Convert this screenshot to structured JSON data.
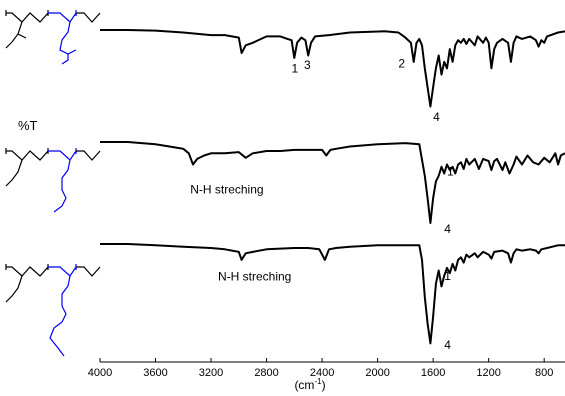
{
  "chart_data": {
    "type": "line",
    "title": "",
    "xlabel": "(cm-1)",
    "xlabel_base": "(cm",
    "xlabel_sup": "-1",
    "xlabel_close": ")",
    "ylabel": "%T",
    "xlim": [
      4000,
      650
    ],
    "x_reversed": true,
    "x_ticks": [
      4000,
      3600,
      3200,
      2800,
      2400,
      2000,
      1600,
      1200,
      800
    ],
    "grid": false,
    "legend": "none",
    "series": [
      {
        "points": [
          [
            4000,
            100
          ],
          [
            3800,
            100
          ],
          [
            3600,
            99.5
          ],
          [
            3400,
            98
          ],
          [
            3200,
            96
          ],
          [
            3100,
            96
          ],
          [
            3000,
            94
          ],
          [
            2980,
            82
          ],
          [
            2950,
            88
          ],
          [
            2900,
            90
          ],
          [
            2800,
            95
          ],
          [
            2700,
            95
          ],
          [
            2650,
            93
          ],
          [
            2620,
            92
          ],
          [
            2600,
            78
          ],
          [
            2580,
            90
          ],
          [
            2550,
            94
          ],
          [
            2520,
            92
          ],
          [
            2500,
            80
          ],
          [
            2480,
            90
          ],
          [
            2450,
            95
          ],
          [
            2350,
            96
          ],
          [
            2200,
            98
          ],
          [
            1950,
            99
          ],
          [
            1850,
            98
          ],
          [
            1800,
            94
          ],
          [
            1760,
            90
          ],
          [
            1740,
            75
          ],
          [
            1720,
            90
          ],
          [
            1700,
            93
          ],
          [
            1680,
            88
          ],
          [
            1660,
            70
          ],
          [
            1640,
            55
          ],
          [
            1620,
            40
          ],
          [
            1600,
            55
          ],
          [
            1580,
            70
          ],
          [
            1560,
            80
          ],
          [
            1540,
            65
          ],
          [
            1520,
            75
          ],
          [
            1500,
            70
          ],
          [
            1480,
            85
          ],
          [
            1460,
            75
          ],
          [
            1440,
            88
          ],
          [
            1420,
            92
          ],
          [
            1400,
            90
          ],
          [
            1380,
            93
          ],
          [
            1360,
            89
          ],
          [
            1340,
            93
          ],
          [
            1300,
            88
          ],
          [
            1280,
            95
          ],
          [
            1240,
            90
          ],
          [
            1220,
            94
          ],
          [
            1200,
            90
          ],
          [
            1180,
            70
          ],
          [
            1160,
            85
          ],
          [
            1140,
            90
          ],
          [
            1100,
            93
          ],
          [
            1060,
            90
          ],
          [
            1040,
            75
          ],
          [
            1020,
            90
          ],
          [
            1000,
            95
          ],
          [
            960,
            93
          ],
          [
            900,
            95
          ],
          [
            860,
            92
          ],
          [
            840,
            87
          ],
          [
            820,
            92
          ],
          [
            800,
            90
          ],
          [
            780,
            95
          ],
          [
            700,
            98
          ],
          [
            650,
            99
          ]
        ],
        "labels": [
          {
            "text": "1",
            "x": 2620,
            "y": 76
          },
          {
            "text": "3",
            "x": 2530,
            "y": 79
          },
          {
            "text": "2",
            "x": 1850,
            "y": 80
          },
          {
            "text": "4",
            "x": 1600,
            "y": 38
          }
        ]
      },
      {
        "points": [
          [
            4000,
            100
          ],
          [
            3800,
            100
          ],
          [
            3600,
            98
          ],
          [
            3500,
            96
          ],
          [
            3400,
            94
          ],
          [
            3360,
            90
          ],
          [
            3330,
            80
          ],
          [
            3300,
            85
          ],
          [
            3250,
            88
          ],
          [
            3200,
            90
          ],
          [
            3100,
            90
          ],
          [
            3000,
            91
          ],
          [
            2950,
            86
          ],
          [
            2900,
            90
          ],
          [
            2800,
            92
          ],
          [
            2700,
            92
          ],
          [
            2600,
            93
          ],
          [
            2500,
            93
          ],
          [
            2400,
            93
          ],
          [
            2370,
            88
          ],
          [
            2340,
            93
          ],
          [
            2300,
            94
          ],
          [
            2200,
            96
          ],
          [
            2000,
            98
          ],
          [
            1800,
            99
          ],
          [
            1700,
            98
          ],
          [
            1660,
            70
          ],
          [
            1640,
            50
          ],
          [
            1620,
            28
          ],
          [
            1600,
            50
          ],
          [
            1580,
            65
          ],
          [
            1560,
            70
          ],
          [
            1540,
            78
          ],
          [
            1520,
            72
          ],
          [
            1500,
            80
          ],
          [
            1480,
            75
          ],
          [
            1460,
            78
          ],
          [
            1440,
            72
          ],
          [
            1420,
            80
          ],
          [
            1400,
            82
          ],
          [
            1380,
            76
          ],
          [
            1360,
            85
          ],
          [
            1340,
            80
          ],
          [
            1300,
            85
          ],
          [
            1270,
            76
          ],
          [
            1240,
            85
          ],
          [
            1200,
            83
          ],
          [
            1180,
            75
          ],
          [
            1160,
            83
          ],
          [
            1140,
            85
          ],
          [
            1100,
            75
          ],
          [
            1080,
            82
          ],
          [
            1050,
            72
          ],
          [
            1020,
            80
          ],
          [
            1000,
            87
          ],
          [
            960,
            80
          ],
          [
            920,
            88
          ],
          [
            880,
            82
          ],
          [
            840,
            80
          ],
          [
            800,
            86
          ],
          [
            760,
            82
          ],
          [
            720,
            90
          ],
          [
            700,
            80
          ],
          [
            680,
            88
          ],
          [
            650,
            90
          ]
        ],
        "labels": [
          {
            "text": "1",
            "x": 1500,
            "y": 81
          },
          {
            "text": "4",
            "x": 1520,
            "y": 30
          }
        ],
        "annotation": {
          "text": "N-H streching",
          "x": 3350,
          "y": 63
        }
      },
      {
        "points": [
          [
            4000,
            100
          ],
          [
            3800,
            100
          ],
          [
            3600,
            99
          ],
          [
            3400,
            98
          ],
          [
            3200,
            97
          ],
          [
            3100,
            96
          ],
          [
            3000,
            94
          ],
          [
            2980,
            88
          ],
          [
            2950,
            93
          ],
          [
            2900,
            94
          ],
          [
            2800,
            96
          ],
          [
            2600,
            97
          ],
          [
            2500,
            97
          ],
          [
            2420,
            96
          ],
          [
            2380,
            88
          ],
          [
            2350,
            96
          ],
          [
            2300,
            97
          ],
          [
            2200,
            98
          ],
          [
            2000,
            99
          ],
          [
            1800,
            99
          ],
          [
            1700,
            99
          ],
          [
            1680,
            88
          ],
          [
            1660,
            60
          ],
          [
            1640,
            40
          ],
          [
            1620,
            25
          ],
          [
            1600,
            45
          ],
          [
            1580,
            70
          ],
          [
            1560,
            80
          ],
          [
            1540,
            68
          ],
          [
            1520,
            76
          ],
          [
            1500,
            82
          ],
          [
            1480,
            78
          ],
          [
            1460,
            85
          ],
          [
            1440,
            80
          ],
          [
            1420,
            88
          ],
          [
            1400,
            90
          ],
          [
            1380,
            86
          ],
          [
            1360,
            92
          ],
          [
            1340,
            90
          ],
          [
            1300,
            93
          ],
          [
            1280,
            90
          ],
          [
            1240,
            94
          ],
          [
            1200,
            92
          ],
          [
            1180,
            89
          ],
          [
            1160,
            94
          ],
          [
            1100,
            95
          ],
          [
            1060,
            93
          ],
          [
            1040,
            86
          ],
          [
            1020,
            93
          ],
          [
            1000,
            96
          ],
          [
            960,
            95
          ],
          [
            900,
            96
          ],
          [
            860,
            95
          ],
          [
            840,
            93
          ],
          [
            820,
            96
          ],
          [
            780,
            97
          ],
          [
            700,
            99
          ],
          [
            650,
            99
          ]
        ],
        "labels": [
          {
            "text": "1",
            "x": 1520,
            "y": 82
          },
          {
            "text": "4",
            "x": 1520,
            "y": 30
          }
        ],
        "annotation": {
          "text": "N-H streching",
          "x": 3150,
          "y": 80
        }
      }
    ]
  }
}
